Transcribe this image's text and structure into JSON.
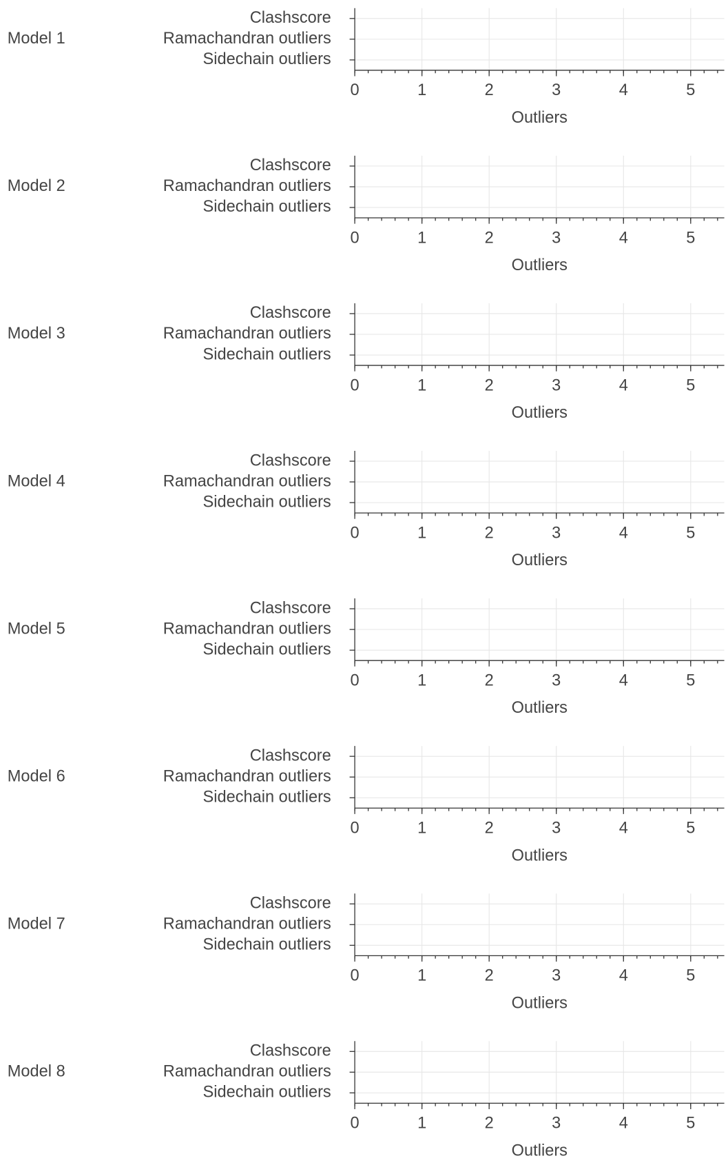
{
  "chart_data": [
    {
      "type": "bar",
      "orientation": "horizontal",
      "group_label": "Model 1",
      "categories": [
        "Clashscore",
        "Ramachandran outliers",
        "Sidechain outliers"
      ],
      "values": [
        null,
        null,
        null
      ],
      "xlabel": "Outliers",
      "xlim": [
        0,
        5.5
      ],
      "xticks": [
        0,
        1,
        2,
        3,
        4,
        5
      ],
      "xminor_step": 0.2,
      "grid": true
    },
    {
      "type": "bar",
      "orientation": "horizontal",
      "group_label": "Model 2",
      "categories": [
        "Clashscore",
        "Ramachandran outliers",
        "Sidechain outliers"
      ],
      "values": [
        null,
        null,
        null
      ],
      "xlabel": "Outliers",
      "xlim": [
        0,
        5.5
      ],
      "xticks": [
        0,
        1,
        2,
        3,
        4,
        5
      ],
      "xminor_step": 0.2,
      "grid": true
    },
    {
      "type": "bar",
      "orientation": "horizontal",
      "group_label": "Model 3",
      "categories": [
        "Clashscore",
        "Ramachandran outliers",
        "Sidechain outliers"
      ],
      "values": [
        null,
        null,
        null
      ],
      "xlabel": "Outliers",
      "xlim": [
        0,
        5.5
      ],
      "xticks": [
        0,
        1,
        2,
        3,
        4,
        5
      ],
      "xminor_step": 0.2,
      "grid": true
    },
    {
      "type": "bar",
      "orientation": "horizontal",
      "group_label": "Model 4",
      "categories": [
        "Clashscore",
        "Ramachandran outliers",
        "Sidechain outliers"
      ],
      "values": [
        null,
        null,
        null
      ],
      "xlabel": "Outliers",
      "xlim": [
        0,
        5.5
      ],
      "xticks": [
        0,
        1,
        2,
        3,
        4,
        5
      ],
      "xminor_step": 0.2,
      "grid": true
    },
    {
      "type": "bar",
      "orientation": "horizontal",
      "group_label": "Model 5",
      "categories": [
        "Clashscore",
        "Ramachandran outliers",
        "Sidechain outliers"
      ],
      "values": [
        null,
        null,
        null
      ],
      "xlabel": "Outliers",
      "xlim": [
        0,
        5.5
      ],
      "xticks": [
        0,
        1,
        2,
        3,
        4,
        5
      ],
      "xminor_step": 0.2,
      "grid": true
    },
    {
      "type": "bar",
      "orientation": "horizontal",
      "group_label": "Model 6",
      "categories": [
        "Clashscore",
        "Ramachandran outliers",
        "Sidechain outliers"
      ],
      "values": [
        null,
        null,
        null
      ],
      "xlabel": "Outliers",
      "xlim": [
        0,
        5.5
      ],
      "xticks": [
        0,
        1,
        2,
        3,
        4,
        5
      ],
      "xminor_step": 0.2,
      "grid": true
    },
    {
      "type": "bar",
      "orientation": "horizontal",
      "group_label": "Model 7",
      "categories": [
        "Clashscore",
        "Ramachandran outliers",
        "Sidechain outliers"
      ],
      "values": [
        null,
        null,
        null
      ],
      "xlabel": "Outliers",
      "xlim": [
        0,
        5.5
      ],
      "xticks": [
        0,
        1,
        2,
        3,
        4,
        5
      ],
      "xminor_step": 0.2,
      "grid": true
    },
    {
      "type": "bar",
      "orientation": "horizontal",
      "group_label": "Model 8",
      "categories": [
        "Clashscore",
        "Ramachandran outliers",
        "Sidechain outliers"
      ],
      "values": [
        null,
        null,
        null
      ],
      "xlabel": "Outliers",
      "xlim": [
        0,
        5.5
      ],
      "xticks": [
        0,
        1,
        2,
        3,
        4,
        5
      ],
      "xminor_step": 0.2,
      "grid": true
    }
  ]
}
